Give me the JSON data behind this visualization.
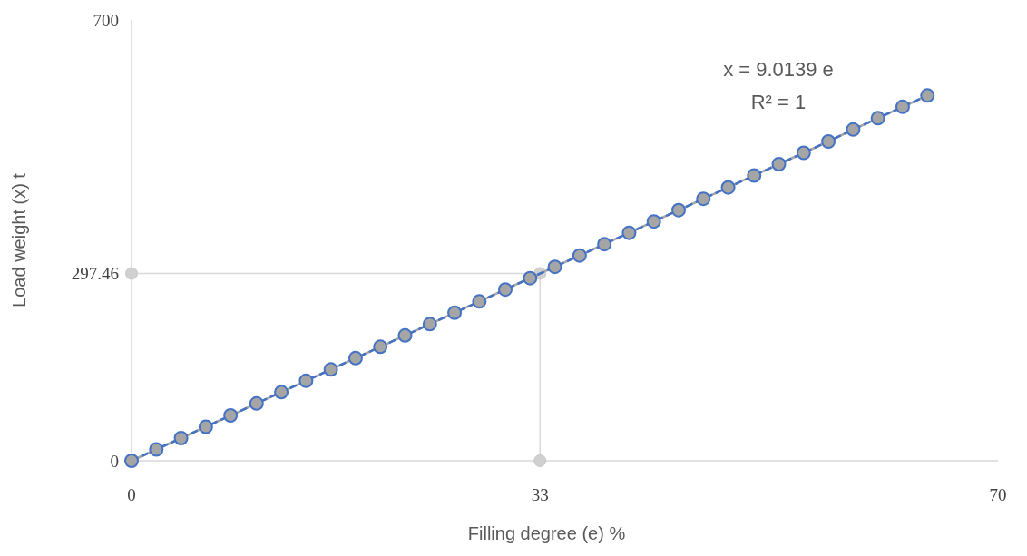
{
  "chart_data": {
    "type": "line",
    "xlabel": "Filling degree (e) %",
    "ylabel": "Load weight  (x) t",
    "xlim": [
      0,
      70
    ],
    "xticks": [
      0,
      33,
      70
    ],
    "ylim": [
      0,
      700
    ],
    "yticks": [
      0,
      297.46,
      700
    ],
    "grid": false,
    "marker": "circle",
    "annotations": [
      "x = 9.0139 e",
      "R² = 1"
    ],
    "series": [
      {
        "color": "#4472c4",
        "line_style": "dashed",
        "x": [
          0,
          2,
          4,
          6,
          8,
          10.1,
          12.1,
          14.1,
          16.1,
          18.1,
          20.1,
          22.1,
          24.1,
          26.1,
          28.1,
          30.2,
          32.2,
          34.2,
          36.2,
          38.2,
          40.2,
          42.2,
          44.2,
          46.2,
          48.2,
          50.3,
          52.3,
          54.3,
          56.3,
          58.3,
          60.3,
          62.3,
          64.3
        ],
        "values": [
          0,
          18,
          36,
          54,
          72,
          91,
          109,
          127,
          145,
          163,
          181,
          199,
          217,
          235,
          253,
          272,
          290,
          308,
          326,
          344,
          362,
          380,
          398,
          416,
          434,
          453,
          471,
          489,
          507,
          526,
          544,
          562,
          580
        ]
      },
      {
        "color": "#d9d9d9",
        "line_style": "solid",
        "x": [
          0,
          33,
          33
        ],
        "values": [
          297.46,
          297.46,
          0
        ]
      }
    ]
  }
}
